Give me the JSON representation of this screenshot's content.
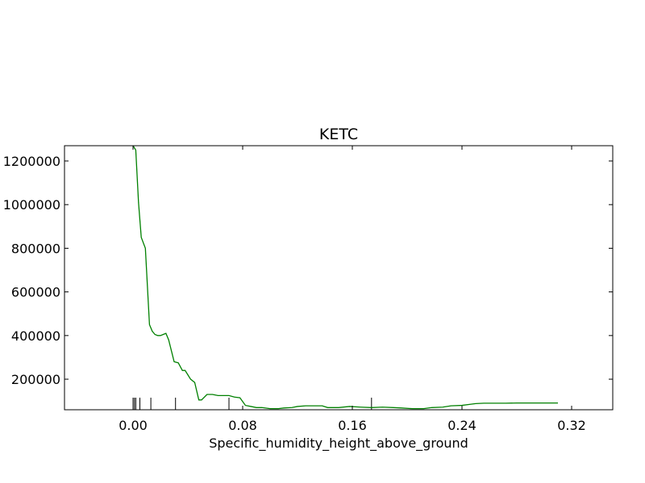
{
  "chart_data": {
    "type": "line",
    "title": "KETC",
    "xlabel": "Specific_humidity_height_above_ground",
    "ylabel": "",
    "xlim": [
      -0.05,
      0.35
    ],
    "ylim": [
      60000,
      1270000
    ],
    "grid": false,
    "x_ticks": [
      0.0,
      0.08,
      0.16,
      0.24,
      0.32
    ],
    "x_tick_labels": [
      "0.00",
      "0.08",
      "0.16",
      "0.24",
      "0.32"
    ],
    "y_ticks": [
      200000,
      400000,
      600000,
      800000,
      1000000,
      1200000
    ],
    "y_tick_labels": [
      "200000",
      "400000",
      "600000",
      "800000",
      "1000000",
      "1200000"
    ],
    "series": [
      {
        "color": "#008000",
        "x": [
          0.0,
          0.002,
          0.004,
          0.006,
          0.009,
          0.012,
          0.014,
          0.016,
          0.018,
          0.02,
          0.022,
          0.024,
          0.026,
          0.028,
          0.03,
          0.033,
          0.036,
          0.038,
          0.04,
          0.042,
          0.045,
          0.048,
          0.05,
          0.054,
          0.058,
          0.062,
          0.066,
          0.07,
          0.074,
          0.078,
          0.082,
          0.086,
          0.09,
          0.094,
          0.1,
          0.106,
          0.11,
          0.116,
          0.12,
          0.126,
          0.132,
          0.138,
          0.142,
          0.15,
          0.158,
          0.166,
          0.174,
          0.182,
          0.19,
          0.196,
          0.204,
          0.212,
          0.218,
          0.226,
          0.232,
          0.24,
          0.246,
          0.25,
          0.256,
          0.264,
          0.272,
          0.28,
          0.29,
          0.3,
          0.31
        ],
        "y": [
          1270000,
          1250000,
          1010000,
          850000,
          800000,
          450000,
          420000,
          405000,
          400000,
          400000,
          405000,
          410000,
          380000,
          330000,
          280000,
          275000,
          240000,
          240000,
          220000,
          200000,
          185000,
          105000,
          105000,
          130000,
          130000,
          125000,
          125000,
          125000,
          118000,
          115000,
          80000,
          75000,
          70000,
          70000,
          65000,
          65000,
          68000,
          70000,
          75000,
          78000,
          78000,
          78000,
          70000,
          70000,
          75000,
          72000,
          70000,
          72000,
          70000,
          68000,
          65000,
          65000,
          70000,
          72000,
          78000,
          80000,
          85000,
          88000,
          90000,
          90000,
          90000,
          91000,
          91000,
          91000,
          91000
        ]
      }
    ],
    "rug_x": [
      0.0,
      0.001,
      0.002,
      0.005,
      0.013,
      0.031,
      0.07,
      0.174
    ]
  }
}
